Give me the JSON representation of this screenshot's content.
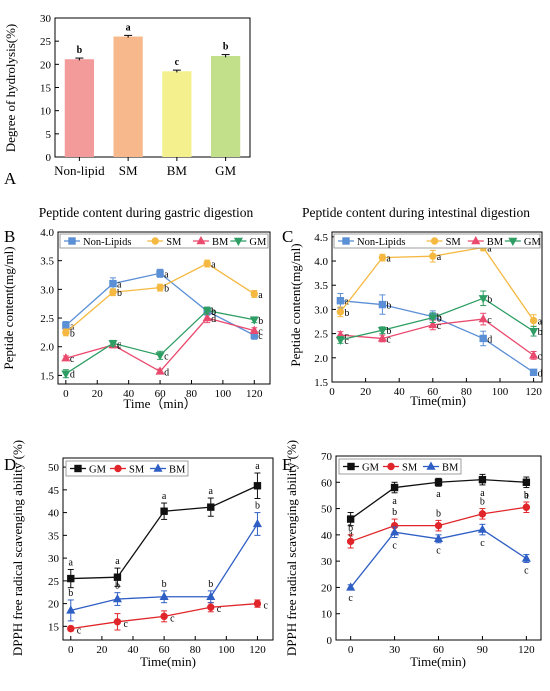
{
  "chart_data": [
    {
      "panel": "A",
      "type": "bar",
      "title": "",
      "ylabel": "Degree of hydrolysis(%)",
      "xlabel": "",
      "ylim": [
        0,
        30
      ],
      "yticks": [
        0,
        5,
        10,
        15,
        20,
        25,
        30
      ],
      "categories": [
        "Non-lipid",
        "SM",
        "BM",
        "GM"
      ],
      "values": [
        21.1,
        26.0,
        18.5,
        21.8
      ],
      "errors": [
        0.25,
        0.25,
        0.25,
        0.3
      ],
      "labels": [
        "b",
        "a",
        "c",
        "b"
      ],
      "colors": [
        "#f39a9a",
        "#f7b98c",
        "#f4f08e",
        "#c2e08a"
      ]
    },
    {
      "panel": "B",
      "type": "line",
      "title": "Peptide content during gastric digestion",
      "xlabel": "Time（min）",
      "ylabel": "Peptide content(mg/ml)",
      "xlim": [
        -5,
        130
      ],
      "ylim": [
        1.35,
        4.0
      ],
      "xticks": [
        0,
        20,
        40,
        60,
        80,
        100,
        120
      ],
      "yticks": [
        1.5,
        2.0,
        2.5,
        3.0,
        3.5,
        4.0
      ],
      "legend": "top",
      "x": [
        0,
        30,
        60,
        90,
        120
      ],
      "series": [
        {
          "name": "Non-Lipids",
          "color": "#5b8fd6",
          "marker": "square",
          "values": [
            2.37,
            3.1,
            3.28,
            2.62,
            2.2
          ],
          "errors": [
            0.07,
            0.1,
            0.07,
            0.07,
            0.07
          ],
          "labels": [
            "a",
            "a",
            "a",
            "b",
            "c"
          ]
        },
        {
          "name": "SM",
          "color": "#f5b942",
          "marker": "circle",
          "values": [
            2.25,
            2.95,
            3.03,
            3.45,
            2.92
          ],
          "errors": [
            0.06,
            0.06,
            0.06,
            0.06,
            0.06
          ],
          "labels": [
            "b",
            "b",
            "b",
            "a",
            "a"
          ]
        },
        {
          "name": "BM",
          "color": "#e94a6e",
          "marker": "triangle-up",
          "values": [
            1.8,
            2.03,
            1.57,
            2.5,
            2.28
          ],
          "errors": [
            0.04,
            0.05,
            0.04,
            0.08,
            0.05
          ],
          "labels": [
            "c",
            "c",
            "d",
            "d",
            "c"
          ]
        },
        {
          "name": "GM",
          "color": "#2e9e64",
          "marker": "triangle-down",
          "values": [
            1.53,
            2.06,
            1.85,
            2.63,
            2.47
          ],
          "errors": [
            0.07,
            0.05,
            0.07,
            0.06,
            0.05
          ],
          "labels": [
            "d",
            "c",
            "c",
            "b",
            "b"
          ]
        }
      ]
    },
    {
      "panel": "C",
      "type": "line",
      "title": "Peptide content during intestinal digestion",
      "xlabel": "Time(min)",
      "ylabel": "Peptide content(mg/ml)",
      "xlim": [
        0,
        125
      ],
      "ylim": [
        1.5,
        4.6
      ],
      "xticks": [
        0,
        20,
        40,
        60,
        80,
        100,
        120
      ],
      "yticks": [
        1.5,
        2.0,
        2.5,
        3.0,
        3.5,
        4.0,
        4.5
      ],
      "legend": "top",
      "x": [
        5,
        30,
        60,
        90,
        120
      ],
      "series": [
        {
          "name": "Non-Lipids",
          "color": "#5b8fd6",
          "marker": "square",
          "values": [
            3.18,
            3.1,
            2.85,
            2.4,
            1.7
          ],
          "errors": [
            0.15,
            0.2,
            0.12,
            0.15,
            0.05
          ],
          "labels": [
            "a",
            "b",
            "b",
            "d",
            "d"
          ]
        },
        {
          "name": "SM",
          "color": "#f5b942",
          "marker": "circle",
          "values": [
            2.95,
            4.07,
            4.1,
            4.28,
            2.77
          ],
          "errors": [
            0.1,
            0.07,
            0.12,
            0.07,
            0.12
          ],
          "labels": [
            "b",
            "a",
            "a",
            "a",
            "a"
          ]
        },
        {
          "name": "BM",
          "color": "#e94a6e",
          "marker": "triangle-up",
          "values": [
            2.47,
            2.4,
            2.68,
            2.8,
            2.05
          ],
          "errors": [
            0.07,
            0.07,
            0.1,
            0.12,
            0.08
          ],
          "labels": [
            "c",
            "c",
            "c",
            "c",
            "c"
          ]
        },
        {
          "name": "GM",
          "color": "#2e9e64",
          "marker": "triangle-down",
          "values": [
            2.37,
            2.57,
            2.83,
            3.23,
            2.55
          ],
          "errors": [
            0.07,
            0.07,
            0.1,
            0.15,
            0.1
          ],
          "labels": [
            "c",
            "b",
            "b",
            "b",
            "b"
          ]
        }
      ]
    },
    {
      "panel": "D",
      "type": "line",
      "title": "",
      "xlabel": "Time(min)",
      "ylabel": "DPPH free radical scavenging ability (%)",
      "xlim": [
        -5,
        130
      ],
      "ylim": [
        12,
        52
      ],
      "xticks": [
        0,
        20,
        40,
        60,
        80,
        100,
        120
      ],
      "yticks": [
        15,
        20,
        25,
        30,
        35,
        40,
        45,
        50
      ],
      "legend": "top-left",
      "x": [
        0,
        30,
        60,
        90,
        120
      ],
      "series": [
        {
          "name": "GM",
          "color": "#111111",
          "marker": "square",
          "values": [
            25.5,
            25.8,
            40.3,
            41.2,
            45.9
          ],
          "errors": [
            2.0,
            2.0,
            1.8,
            2.0,
            2.8
          ],
          "labels": [
            "a",
            "a",
            "a",
            "a",
            "a"
          ]
        },
        {
          "name": "SM",
          "color": "#e0262a",
          "marker": "circle",
          "values": [
            14.5,
            16.0,
            17.2,
            19.2,
            20.0
          ],
          "errors": [
            0.5,
            1.8,
            1.2,
            1.0,
            0.8
          ],
          "labels": [
            "c",
            "c",
            "c",
            "c",
            "c"
          ]
        },
        {
          "name": "BM",
          "color": "#2f5fc4",
          "marker": "triangle-up",
          "values": [
            18.5,
            21.0,
            21.5,
            21.5,
            37.5
          ],
          "errors": [
            2.3,
            1.4,
            1.3,
            1.3,
            2.5
          ],
          "labels": [
            "b",
            "b",
            "b",
            "b",
            "b"
          ]
        }
      ]
    },
    {
      "panel": "E",
      "type": "line",
      "title": "",
      "xlabel": "Time(min)",
      "ylabel": "DPPH free radical scavenging ability (%)",
      "xlim": [
        -10,
        130
      ],
      "ylim": [
        0,
        70
      ],
      "xticks": [
        0,
        30,
        60,
        90,
        120
      ],
      "yticks": [
        0,
        10,
        20,
        30,
        40,
        50,
        60,
        70
      ],
      "legend": "top-left",
      "x": [
        0,
        30,
        60,
        90,
        120
      ],
      "series": [
        {
          "name": "GM",
          "color": "#111111",
          "marker": "square",
          "values": [
            46.0,
            58.0,
            60.0,
            61.0,
            60.0
          ],
          "errors": [
            2.5,
            2.0,
            1.5,
            2.0,
            2.0
          ],
          "labels": [
            "a",
            "a",
            "a",
            "a",
            "a"
          ]
        },
        {
          "name": "SM",
          "color": "#e0262a",
          "marker": "circle",
          "values": [
            37.5,
            43.5,
            43.5,
            48.0,
            50.5
          ],
          "errors": [
            2.5,
            2.5,
            2.0,
            2.0,
            2.0
          ],
          "labels": [
            "b",
            "b",
            "b",
            "b",
            "b"
          ]
        },
        {
          "name": "BM",
          "color": "#2f5fc4",
          "marker": "triangle-up",
          "values": [
            20.0,
            41.0,
            38.5,
            42.0,
            31.0
          ],
          "errors": [
            1.0,
            2.0,
            1.5,
            2.0,
            1.5
          ],
          "labels": [
            "c",
            "c",
            "c",
            "c",
            "c"
          ]
        }
      ]
    }
  ]
}
